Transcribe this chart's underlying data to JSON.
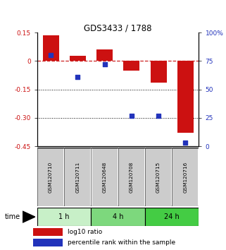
{
  "title": "GDS3433 / 1788",
  "samples": [
    "GSM120710",
    "GSM120711",
    "GSM120648",
    "GSM120708",
    "GSM120715",
    "GSM120716"
  ],
  "log10_ratio": [
    0.135,
    0.028,
    0.06,
    -0.05,
    -0.115,
    -0.38
  ],
  "percentile_rank": [
    80,
    61,
    72,
    27,
    27,
    3
  ],
  "ylim_left": [
    -0.45,
    0.15
  ],
  "ylim_right": [
    0,
    100
  ],
  "yticks_left": [
    0.15,
    0,
    -0.15,
    -0.3,
    -0.45
  ],
  "yticks_right": [
    100,
    75,
    50,
    25,
    0
  ],
  "ytick_labels_left": [
    "0.15",
    "0",
    "-0.15",
    "-0.30",
    "-0.45"
  ],
  "ytick_labels_right": [
    "100%",
    "75",
    "50",
    "25",
    "0"
  ],
  "time_groups": [
    {
      "label": "1 h",
      "start": 0,
      "end": 2,
      "color": "#c8f0c8"
    },
    {
      "label": "4 h",
      "start": 2,
      "end": 4,
      "color": "#7dd87d"
    },
    {
      "label": "24 h",
      "start": 4,
      "end": 6,
      "color": "#44cc44"
    }
  ],
  "bar_color": "#cc1111",
  "blue_color": "#2233bb",
  "dashed_line_color": "#cc2222",
  "sample_box_color": "#cccccc",
  "sample_box_edge": "#555555",
  "legend_red_label": "log10 ratio",
  "legend_blue_label": "percentile rank within the sample",
  "bar_width": 0.6
}
